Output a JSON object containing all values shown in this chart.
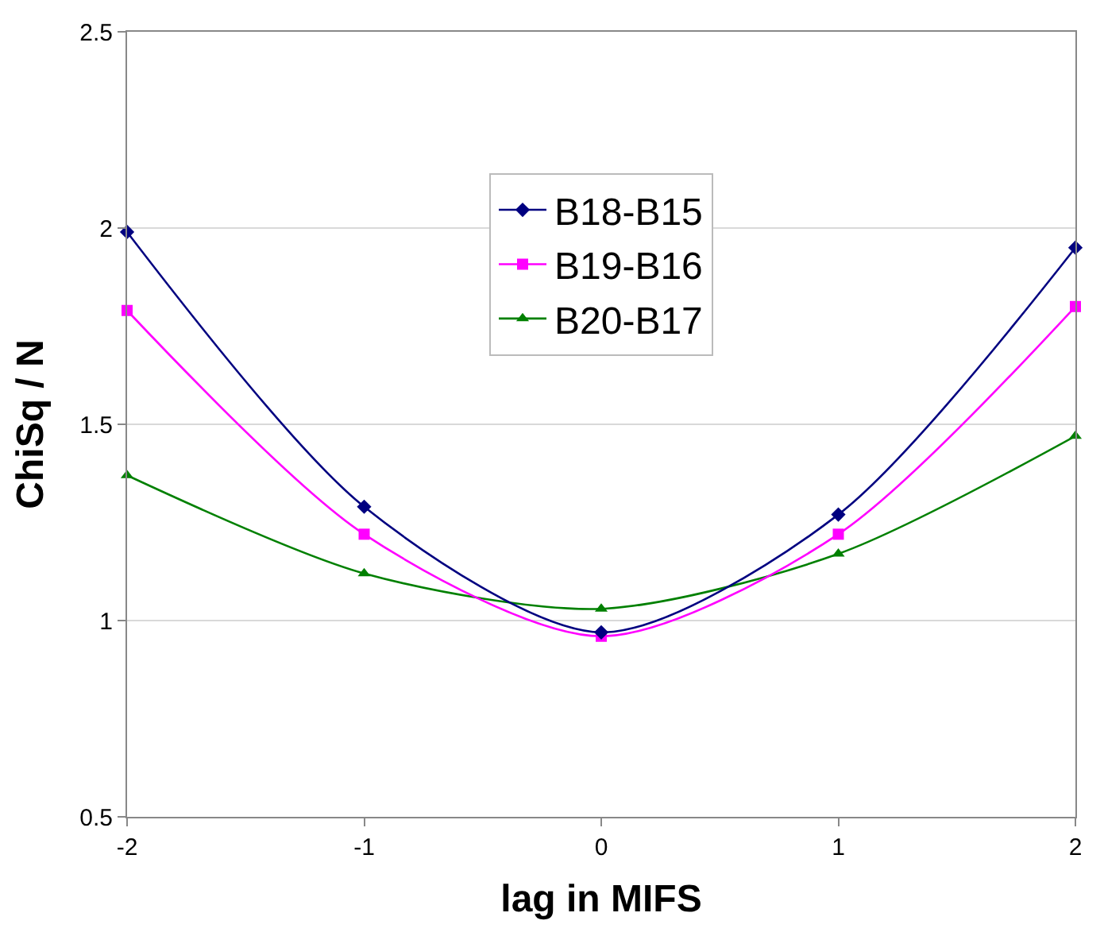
{
  "chart_data": {
    "type": "line",
    "xlabel": "lag in MIFS",
    "ylabel": "ChiSq / N",
    "x": [
      -2,
      -1,
      0,
      1,
      2
    ],
    "series": [
      {
        "name": "B18-B15",
        "color": "#000080",
        "marker": "diamond",
        "values": [
          1.99,
          1.29,
          0.97,
          1.27,
          1.95
        ]
      },
      {
        "name": "B19-B16",
        "color": "#ff00ff",
        "marker": "square",
        "values": [
          1.79,
          1.22,
          0.96,
          1.22,
          1.8
        ]
      },
      {
        "name": "B20-B17",
        "color": "#008000",
        "marker": "triangle",
        "values": [
          1.37,
          1.12,
          1.03,
          1.17,
          1.47
        ]
      }
    ],
    "xlim": [
      -2,
      2
    ],
    "xticks": [
      -2,
      -1,
      0,
      1,
      2
    ],
    "ylim": [
      0.5,
      2.5
    ],
    "yticks": [
      0.5,
      1,
      1.5,
      2,
      2.5
    ],
    "grid": "y",
    "legend": "top",
    "line_style": "solid"
  }
}
